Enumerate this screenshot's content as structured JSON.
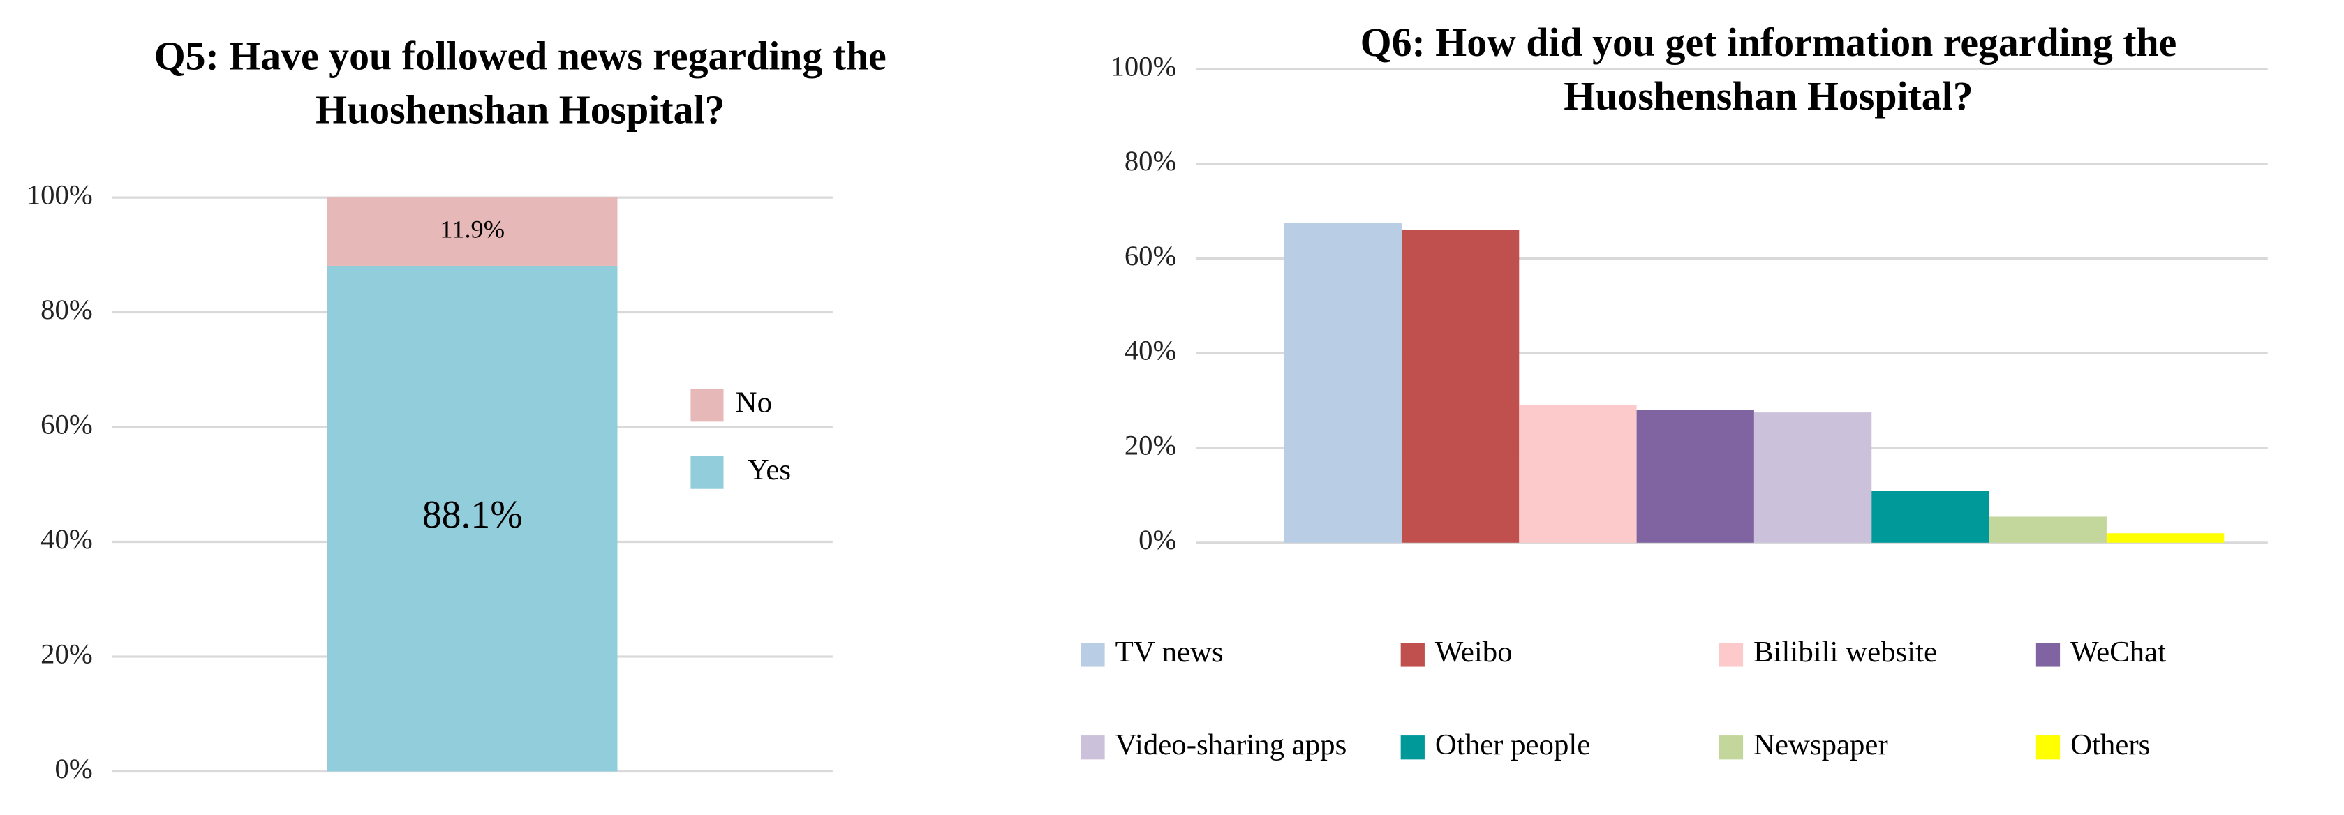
{
  "chart_data": [
    {
      "type": "bar",
      "stacked": true,
      "title": [
        "Q5: Have you followed news regarding the",
        "Huoshenshan Hospital?"
      ],
      "categories": [
        null
      ],
      "series": [
        {
          "name": "Yes",
          "color": "#92CDDC",
          "values": [
            88.1
          ],
          "value_labels": [
            "88.1%"
          ]
        },
        {
          "name": "No",
          "color": "#E6B9B8",
          "values": [
            11.9
          ],
          "value_labels": [
            "11.9%"
          ]
        }
      ],
      "ylim": [
        0,
        100
      ],
      "yticks": [
        {
          "value": 0,
          "label": "0%"
        },
        {
          "value": 20,
          "label": "20%"
        },
        {
          "value": 40,
          "label": "40%"
        },
        {
          "value": 60,
          "label": "60%"
        },
        {
          "value": 80,
          "label": "80%"
        },
        {
          "value": 100,
          "label": "100%"
        }
      ],
      "grid": true,
      "legend": "right"
    },
    {
      "type": "bar",
      "title": [
        "Q6: How did you get information regarding the",
        "Huoshenshan Hospital?"
      ],
      "categories": [
        "TV news",
        "Weibo",
        "Bilibili website",
        "WeChat",
        "Video-sharing apps",
        "Other people",
        "Newspaper",
        "Others"
      ],
      "values": [
        67.5,
        66,
        29,
        28,
        27.5,
        11,
        5.5,
        2
      ],
      "colors": [
        "#B9CDE5",
        "#C0504D",
        "#FCCACA",
        "#8064A2",
        "#CCC1DA",
        "#009999",
        "#C3D69B",
        "#FFFF00"
      ],
      "ylim": [
        0,
        100
      ],
      "yticks": [
        {
          "value": 0,
          "label": "0%"
        },
        {
          "value": 20,
          "label": "20%"
        },
        {
          "value": 40,
          "label": "40%"
        },
        {
          "value": 60,
          "label": "60%"
        },
        {
          "value": 80,
          "label": "80%"
        },
        {
          "value": 100,
          "label": "100%"
        }
      ],
      "grid": true,
      "legend": "bottom"
    }
  ]
}
